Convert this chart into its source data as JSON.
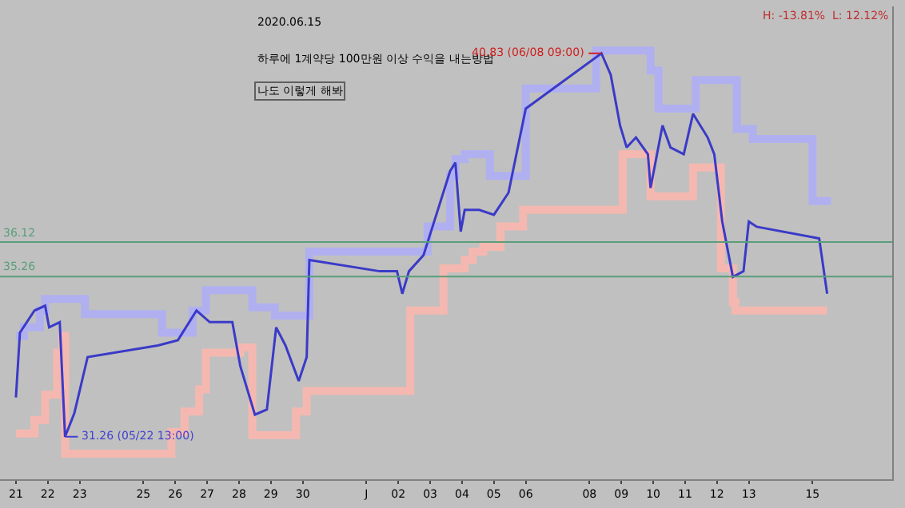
{
  "chart_data": {
    "type": "line",
    "title": "2020.06.15",
    "subtitle": "하루에 1계약당 100만원 이상 수익을 내는방법",
    "annotations": [
      "나도 이렇게 해봐",
      "H: -13.81%  L: 12.12%",
      {
        "text": "40.83 (06/08 09:00)",
        "x": "2020-06-08T09:00",
        "y": 40.83
      },
      {
        "text": "31.26 (05/22 13:00)",
        "x": "2020-05-22T13:00",
        "y": 31.26
      }
    ],
    "series": [
      {
        "color": "#b0b0f0",
        "type": "step",
        "x": [
          "2020-05-21T00:00",
          "2020-05-21T06:00",
          "2020-05-21T18:00",
          "2020-05-21T22:00",
          "2020-05-23T00:00",
          "2020-05-23T04:00",
          "2020-05-25T14:00",
          "2020-05-26T07:00",
          "2020-05-26T13:00",
          "2020-05-26T23:00",
          "2020-05-28T05:00",
          "2020-05-28T10:00",
          "2020-05-29T03:00",
          "2020-05-30T03:00",
          "2020-05-30T05:00",
          "2020-06-02T08:00",
          "2020-06-02T22:00",
          "2020-06-03T15:00",
          "2020-06-03T19:00",
          "2020-06-04T02:00",
          "2020-06-04T16:00",
          "2020-06-04T21:00",
          "2020-06-05T17:00",
          "2020-06-06T00:00",
          "2020-06-08T05:00",
          "2020-06-09T14:00",
          "2020-06-09T22:00",
          "2020-06-10T04:00",
          "2020-06-11T06:00",
          "2020-06-11T08:00",
          "2020-06-12T10:00",
          "2020-06-12T15:00",
          "2020-06-13T03:00",
          "2020-06-15T00:00",
          "2020-06-15T11:00"
        ],
        "values": [
          33.78,
          33.99,
          34.41,
          34.7,
          34.7,
          34.32,
          33.86,
          33.86,
          34.41,
          34.92,
          34.92,
          34.49,
          34.28,
          34.28,
          35.88,
          35.88,
          36.51,
          37.77,
          38.19,
          38.31,
          38.31,
          37.77,
          37.77,
          39.95,
          40.9,
          40.9,
          40.4,
          39.45,
          39.45,
          40.16,
          40.16,
          38.94,
          38.69,
          37.14,
          37.05
        ]
      },
      {
        "color": "#f4b8b0",
        "type": "step",
        "x": [
          "2020-05-21T00:00",
          "2020-05-21T14:00",
          "2020-05-21T22:00",
          "2020-05-22T07:00",
          "2020-05-22T11:00",
          "2020-05-22T13:00",
          "2020-05-25T14:00",
          "2020-05-25T21:00",
          "2020-05-26T07:00",
          "2020-05-26T18:00",
          "2020-05-26T23:00",
          "2020-05-28T01:00",
          "2020-05-28T10:00",
          "2020-05-29T15:00",
          "2020-05-29T19:00",
          "2020-05-30T03:00",
          "2020-06-02T05:00",
          "2020-06-02T09:00",
          "2020-06-03T06:00",
          "2020-06-03T10:00",
          "2020-06-04T02:00",
          "2020-06-04T08:00",
          "2020-06-04T16:00",
          "2020-06-05T05:00",
          "2020-06-05T22:00",
          "2020-06-09T01:00",
          "2020-06-09T20:00",
          "2020-06-09T22:00",
          "2020-06-11T01:00",
          "2020-06-11T06:00",
          "2020-06-11T22:00",
          "2020-06-12T03:00",
          "2020-06-12T12:00",
          "2020-06-12T14:00",
          "2020-06-15T11:00"
        ],
        "values": [
          31.34,
          31.68,
          32.31,
          33.36,
          33.78,
          30.84,
          30.84,
          31.38,
          31.89,
          32.44,
          33.36,
          33.49,
          31.3,
          31.3,
          31.89,
          32.4,
          32.4,
          34.41,
          34.41,
          35.46,
          35.67,
          35.88,
          36.0,
          36.51,
          36.92,
          38.31,
          38.31,
          37.26,
          37.26,
          37.98,
          37.98,
          35.46,
          34.62,
          34.41,
          34.41
        ]
      },
      {
        "color": "#3a3ac8",
        "x": [
          "2020-05-21T00:00",
          "2020-05-21T03:00",
          "2020-05-21T14:00",
          "2020-05-21T22:00",
          "2020-05-22T01:00",
          "2020-05-22T09:00",
          "2020-05-22T13:00",
          "2020-05-22T20:00",
          "2020-05-23T06:00",
          "2020-05-25T11:00",
          "2020-05-26T02:00",
          "2020-05-26T16:00",
          "2020-05-27T02:00",
          "2020-05-27T19:00",
          "2020-05-28T01:00",
          "2020-05-28T12:00",
          "2020-05-28T21:00",
          "2020-05-29T04:00",
          "2020-05-29T11:00",
          "2020-05-29T21:00",
          "2020-05-30T03:00",
          "2020-05-30T05:00",
          "2020-06-01T10:00",
          "2020-06-01T23:00",
          "2020-06-02T03:00",
          "2020-06-02T08:00",
          "2020-06-02T19:00",
          "2020-06-03T03:00",
          "2020-06-03T15:00",
          "2020-06-03T19:00",
          "2020-06-03T23:00",
          "2020-06-04T02:00",
          "2020-06-04T13:00",
          "2020-06-05T00:00",
          "2020-06-05T11:00",
          "2020-06-06T00:00",
          "2020-06-08T09:00",
          "2020-06-08T16:00",
          "2020-06-08T23:00",
          "2020-06-09T04:00",
          "2020-06-09T11:00",
          "2020-06-09T20:00",
          "2020-06-09T22:00",
          "2020-06-10T07:00",
          "2020-06-10T13:00",
          "2020-06-10T23:00",
          "2020-06-11T06:00",
          "2020-06-11T17:00",
          "2020-06-11T22:00",
          "2020-06-12T04:00",
          "2020-06-12T12:00",
          "2020-06-12T20:00",
          "2020-06-13T00:00",
          "2020-06-13T06:00",
          "2020-06-15T05:00",
          "2020-06-15T11:00"
        ],
        "values": [
          32.24,
          33.86,
          34.41,
          34.53,
          33.99,
          34.12,
          31.26,
          31.85,
          33.25,
          33.54,
          33.67,
          34.41,
          34.12,
          34.12,
          33.02,
          31.81,
          31.94,
          33.99,
          33.54,
          32.65,
          33.25,
          35.67,
          35.39,
          35.39,
          34.83,
          35.39,
          35.79,
          36.63,
          37.89,
          38.1,
          36.38,
          36.92,
          36.92,
          36.8,
          37.35,
          39.45,
          40.83,
          40.29,
          39.03,
          38.48,
          38.73,
          38.31,
          37.47,
          39.03,
          38.48,
          38.31,
          39.32,
          38.73,
          38.31,
          36.63,
          35.25,
          35.39,
          36.63,
          36.5,
          36.21,
          34.83
        ]
      }
    ],
    "ref_lines": [
      {
        "axis": "y",
        "value": 36.12,
        "label": "36.12",
        "color": "#5a9e7a"
      },
      {
        "axis": "y",
        "value": 35.26,
        "label": "35.26",
        "color": "#5a9e7a"
      }
    ],
    "xlim": [
      "2020-05-20T12:00",
      "2020-06-17T12:00"
    ],
    "xticks": [
      {
        "value": "2020-05-21",
        "label": "21"
      },
      {
        "value": "2020-05-22",
        "label": "22"
      },
      {
        "value": "2020-05-23",
        "label": "23"
      },
      {
        "value": "2020-05-25",
        "label": "25"
      },
      {
        "value": "2020-05-26",
        "label": "26"
      },
      {
        "value": "2020-05-27",
        "label": "27"
      },
      {
        "value": "2020-05-28",
        "label": "28"
      },
      {
        "value": "2020-05-29",
        "label": "29"
      },
      {
        "value": "2020-05-30",
        "label": "30"
      },
      {
        "value": "2020-06-01",
        "label": "J"
      },
      {
        "value": "2020-06-02",
        "label": "02"
      },
      {
        "value": "2020-06-03",
        "label": "03"
      },
      {
        "value": "2020-06-04",
        "label": "04"
      },
      {
        "value": "2020-06-05",
        "label": "05"
      },
      {
        "value": "2020-06-06",
        "label": "06"
      },
      {
        "value": "2020-06-08",
        "label": "08"
      },
      {
        "value": "2020-06-09",
        "label": "09"
      },
      {
        "value": "2020-06-10",
        "label": "10"
      },
      {
        "value": "2020-06-11",
        "label": "11"
      },
      {
        "value": "2020-06-12",
        "label": "12"
      },
      {
        "value": "2020-06-13",
        "label": "13"
      },
      {
        "value": "2020-06-15",
        "label": "15"
      }
    ],
    "ylim": [
      30.2,
      42.0
    ],
    "tick_labels": "x",
    "grid": false,
    "marker": "none",
    "line_style": "solid"
  }
}
